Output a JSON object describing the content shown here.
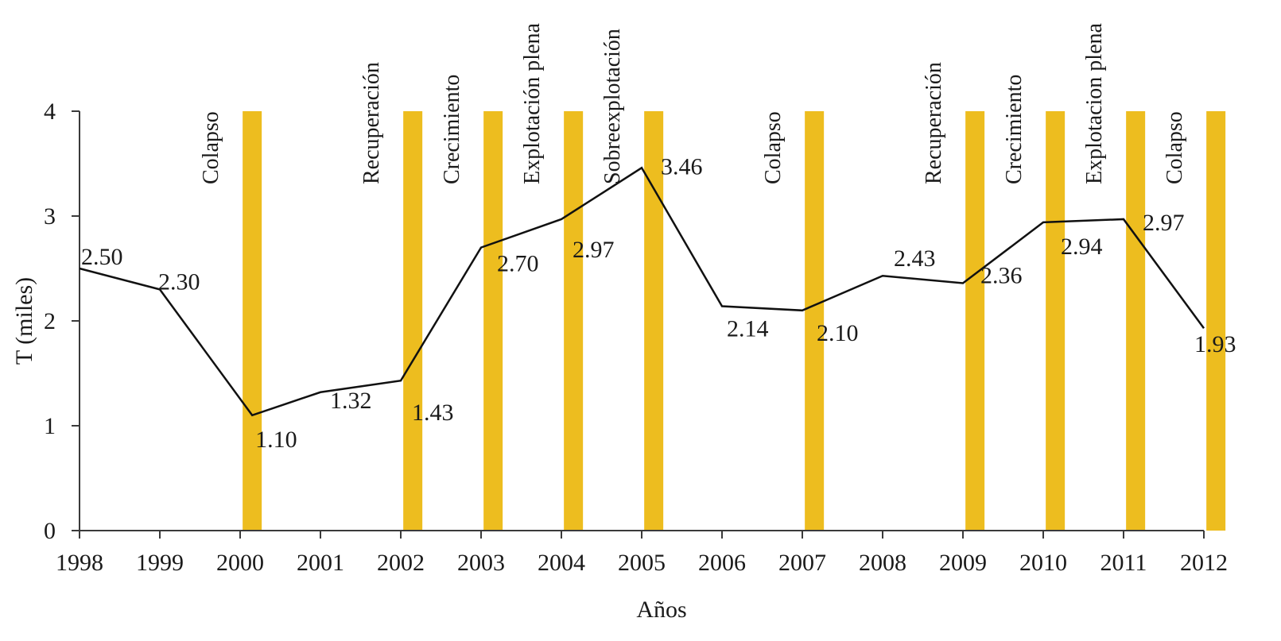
{
  "chart_data": {
    "type": "line",
    "xlabel": "Años",
    "ylabel": "T (miles)",
    "ylim": [
      0,
      4
    ],
    "yticks": [
      "0",
      "1",
      "2",
      "3",
      "4"
    ],
    "categories": [
      "1998",
      "1999",
      "2000",
      "2001",
      "2002",
      "2003",
      "2004",
      "2005",
      "2006",
      "2007",
      "2008",
      "2009",
      "2010",
      "2011",
      "2012"
    ],
    "series": [
      {
        "name": "T (miles)",
        "color": "#111111",
        "x": [
          1998,
          1999,
          2000.15,
          2001,
          2002,
          2003,
          2004,
          2005,
          2006,
          2007,
          2008,
          2009,
          2010,
          2011,
          2012
        ],
        "values": [
          2.5,
          2.3,
          1.1,
          1.32,
          1.43,
          2.7,
          2.97,
          3.46,
          2.14,
          2.1,
          2.43,
          2.36,
          2.94,
          2.97,
          1.93
        ],
        "labels": [
          "2.50",
          "2.30",
          "1.10",
          "1.32",
          "1.43",
          "2.70",
          "2.97",
          "3.46",
          "2.14",
          "2.10",
          "2.43",
          "2.36",
          "2.94",
          "2.97",
          "1.93"
        ]
      }
    ],
    "phases": {
      "color": "#EDBD1F",
      "bar_value": 4,
      "items": [
        {
          "year": 2000.15,
          "label": "Colapso"
        },
        {
          "year": 2002.15,
          "label": "Recuperación"
        },
        {
          "year": 2003.15,
          "label": "Crecimiento"
        },
        {
          "year": 2004.15,
          "label": "Explotación plena"
        },
        {
          "year": 2005.15,
          "label": "Sobreexplotación"
        },
        {
          "year": 2007.15,
          "label": "Colapso"
        },
        {
          "year": 2009.15,
          "label": "Recuperación"
        },
        {
          "year": 2010.15,
          "label": "Crecimiento"
        },
        {
          "year": 2011.15,
          "label": "Explotacion plena"
        },
        {
          "year": 2012.15,
          "label": "Colapso"
        }
      ]
    }
  }
}
